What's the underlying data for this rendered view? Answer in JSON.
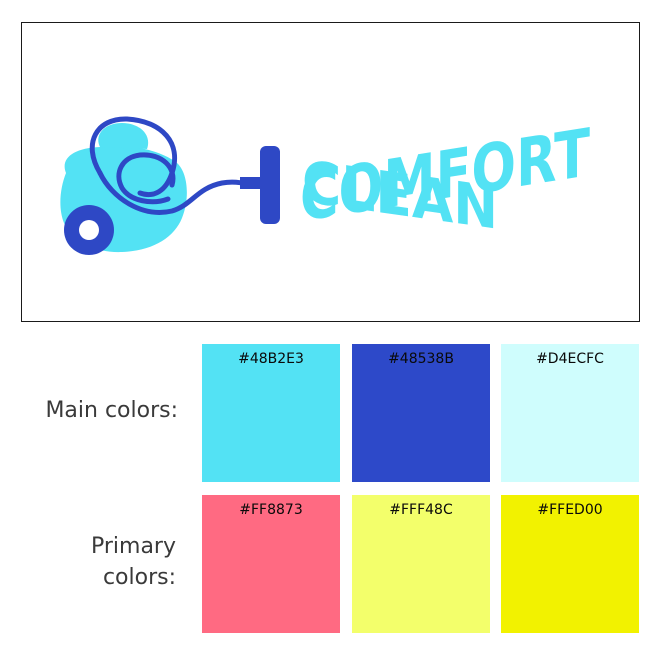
{
  "logo": {
    "brand_line1": "COMFORT",
    "brand_line2": "CLEAN",
    "icon": "vacuum-cleaner-icon",
    "color_light": "#53E2F4",
    "color_dark": "#2E48C5"
  },
  "palette": {
    "main_label": "Main colors:",
    "primary_label": "Primary colors:",
    "main_colors": [
      {
        "hex": "#48B2E3",
        "fill": "#53E2F4"
      },
      {
        "hex": "#48538B",
        "fill": "#2D49C9"
      },
      {
        "hex": "#D4ECFC",
        "fill": "#CFFDFD"
      }
    ],
    "primary_colors": [
      {
        "hex": "#FF8873",
        "fill": "#FF6A82"
      },
      {
        "hex": "#FFF48C",
        "fill": "#F3FF6B"
      },
      {
        "hex": "#FFED00",
        "fill": "#F2F200"
      }
    ]
  }
}
